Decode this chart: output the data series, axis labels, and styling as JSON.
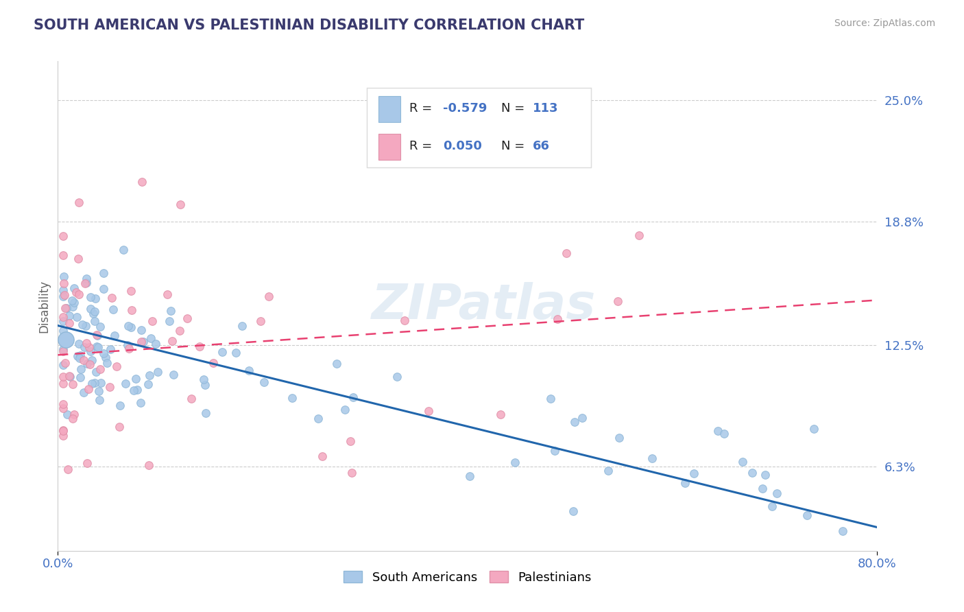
{
  "title": "SOUTH AMERICAN VS PALESTINIAN DISABILITY CORRELATION CHART",
  "source": "Source: ZipAtlas.com",
  "ylabel": "Disability",
  "xlim": [
    0.0,
    0.8
  ],
  "ylim": [
    0.02,
    0.27
  ],
  "yticks": [
    0.063,
    0.125,
    0.188,
    0.25
  ],
  "ytick_labels": [
    "6.3%",
    "12.5%",
    "18.8%",
    "25.0%"
  ],
  "blue_color": "#a8c8e8",
  "blue_edge_color": "#90b8d8",
  "pink_color": "#f4a8c0",
  "pink_edge_color": "#e090a8",
  "blue_line_color": "#2166ac",
  "pink_line_color": "#e84070",
  "R_blue": -0.579,
  "N_blue": 113,
  "R_pink": 0.05,
  "N_pink": 66,
  "legend_blue_label": "South Americans",
  "legend_pink_label": "Palestinians",
  "title_color": "#3a3a6e",
  "axis_color": "#4472c4",
  "watermark": "ZIPatlas",
  "bg_color": "#ffffff",
  "grid_color": "#cccccc",
  "blue_line_start_y": 0.135,
  "blue_line_end_y": 0.032,
  "pink_line_start_y": 0.12,
  "pink_line_end_y": 0.148
}
